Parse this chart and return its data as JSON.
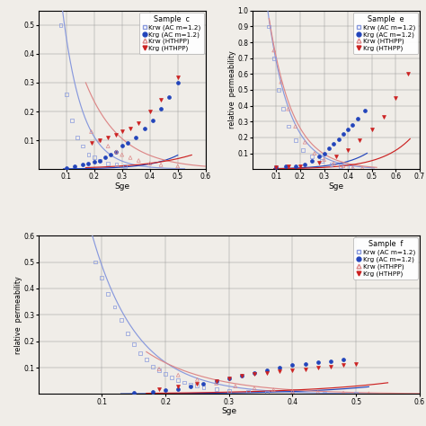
{
  "subplots": [
    {
      "label": "Sample  c",
      "xlim": [
        0.0,
        0.6
      ],
      "ylim": [
        0.0,
        0.55
      ],
      "yticks": [
        0.1,
        0.2,
        0.3,
        0.4,
        0.5
      ],
      "xticks": [
        0.1,
        0.2,
        0.3,
        0.4,
        0.5,
        0.6
      ],
      "xlabel": "Sge",
      "ylabel": "",
      "krw_ac_scatter": [
        [
          0.08,
          0.5
        ],
        [
          0.1,
          0.26
        ],
        [
          0.12,
          0.17
        ],
        [
          0.14,
          0.11
        ],
        [
          0.16,
          0.08
        ],
        [
          0.18,
          0.05
        ],
        [
          0.2,
          0.04
        ],
        [
          0.22,
          0.03
        ],
        [
          0.25,
          0.02
        ],
        [
          0.28,
          0.015
        ],
        [
          0.31,
          0.01
        ]
      ],
      "krg_ac_scatter": [
        [
          0.1,
          0.005
        ],
        [
          0.13,
          0.01
        ],
        [
          0.16,
          0.015
        ],
        [
          0.18,
          0.02
        ],
        [
          0.2,
          0.025
        ],
        [
          0.22,
          0.03
        ],
        [
          0.24,
          0.04
        ],
        [
          0.26,
          0.05
        ],
        [
          0.28,
          0.06
        ],
        [
          0.3,
          0.08
        ],
        [
          0.32,
          0.09
        ],
        [
          0.35,
          0.11
        ],
        [
          0.38,
          0.14
        ],
        [
          0.41,
          0.17
        ],
        [
          0.44,
          0.21
        ],
        [
          0.47,
          0.25
        ],
        [
          0.5,
          0.3
        ]
      ],
      "krw_ht_scatter": [
        [
          0.19,
          0.13
        ],
        [
          0.22,
          0.1
        ],
        [
          0.25,
          0.08
        ],
        [
          0.28,
          0.06
        ],
        [
          0.3,
          0.05
        ],
        [
          0.33,
          0.04
        ],
        [
          0.36,
          0.03
        ],
        [
          0.4,
          0.02
        ],
        [
          0.44,
          0.015
        ],
        [
          0.5,
          0.01
        ]
      ],
      "krg_ht_scatter": [
        [
          0.19,
          0.09
        ],
        [
          0.22,
          0.1
        ],
        [
          0.25,
          0.11
        ],
        [
          0.28,
          0.12
        ],
        [
          0.3,
          0.13
        ],
        [
          0.33,
          0.14
        ],
        [
          0.36,
          0.16
        ],
        [
          0.4,
          0.2
        ],
        [
          0.44,
          0.24
        ],
        [
          0.5,
          0.32
        ]
      ],
      "krw_ac_curve": [
        0.075,
        0.65,
        14.0
      ],
      "krg_ac_curve": [
        0.09,
        0.0008,
        10.0,
        0.5
      ],
      "krw_ht_curve": [
        0.17,
        0.3,
        8.0
      ],
      "krg_ht_curve": [
        0.17,
        0.005,
        6.0,
        0.55
      ]
    },
    {
      "label": "Sample  e",
      "xlim": [
        0.0,
        0.7
      ],
      "ylim": [
        0.0,
        1.0
      ],
      "yticks": [
        0.1,
        0.2,
        0.3,
        0.4,
        0.5,
        0.6,
        0.7,
        0.8,
        0.9,
        1.0
      ],
      "xticks": [
        0.1,
        0.2,
        0.3,
        0.4,
        0.5,
        0.6,
        0.7
      ],
      "xlabel": "Sge",
      "ylabel": "relative  permeability",
      "krw_ac_scatter": [
        [
          0.07,
          0.9
        ],
        [
          0.09,
          0.7
        ],
        [
          0.11,
          0.5
        ],
        [
          0.13,
          0.38
        ],
        [
          0.15,
          0.27
        ],
        [
          0.18,
          0.18
        ],
        [
          0.21,
          0.12
        ],
        [
          0.25,
          0.08
        ],
        [
          0.29,
          0.05
        ],
        [
          0.33,
          0.03
        ],
        [
          0.37,
          0.02
        ],
        [
          0.41,
          0.01
        ]
      ],
      "krg_ac_scatter": [
        [
          0.1,
          0.01
        ],
        [
          0.14,
          0.015
        ],
        [
          0.18,
          0.02
        ],
        [
          0.22,
          0.03
        ],
        [
          0.25,
          0.05
        ],
        [
          0.28,
          0.08
        ],
        [
          0.3,
          0.1
        ],
        [
          0.32,
          0.13
        ],
        [
          0.34,
          0.16
        ],
        [
          0.36,
          0.19
        ],
        [
          0.38,
          0.22
        ],
        [
          0.4,
          0.25
        ],
        [
          0.42,
          0.28
        ],
        [
          0.44,
          0.32
        ],
        [
          0.47,
          0.37
        ]
      ],
      "krw_ht_scatter": [
        [
          0.09,
          0.75
        ],
        [
          0.12,
          0.55
        ],
        [
          0.15,
          0.38
        ],
        [
          0.18,
          0.27
        ],
        [
          0.22,
          0.17
        ],
        [
          0.26,
          0.1
        ],
        [
          0.3,
          0.06
        ],
        [
          0.34,
          0.035
        ],
        [
          0.38,
          0.02
        ],
        [
          0.42,
          0.01
        ],
        [
          0.46,
          0.005
        ]
      ],
      "krg_ht_scatter": [
        [
          0.1,
          0.01
        ],
        [
          0.15,
          0.015
        ],
        [
          0.2,
          0.02
        ],
        [
          0.28,
          0.04
        ],
        [
          0.35,
          0.08
        ],
        [
          0.4,
          0.12
        ],
        [
          0.45,
          0.18
        ],
        [
          0.5,
          0.25
        ],
        [
          0.55,
          0.33
        ],
        [
          0.6,
          0.45
        ],
        [
          0.65,
          0.6
        ]
      ],
      "krw_ac_curve": [
        0.06,
        1.05,
        11.0
      ],
      "krg_ac_curve": [
        0.09,
        0.003,
        9.0,
        0.48
      ],
      "krw_ht_curve": [
        0.07,
        0.95,
        10.0
      ],
      "krg_ht_curve": [
        0.09,
        0.002,
        8.0,
        0.66
      ]
    },
    {
      "label": "Sample  f",
      "xlim": [
        0.0,
        0.6
      ],
      "ylim": [
        0.0,
        0.6
      ],
      "yticks": [
        0.1,
        0.2,
        0.3,
        0.4,
        0.5,
        0.6
      ],
      "xticks": [
        0.1,
        0.2,
        0.3,
        0.4,
        0.5,
        0.6
      ],
      "xlabel": "Sge",
      "ylabel": "relative  permeability",
      "krw_ac_scatter": [
        [
          0.09,
          0.5
        ],
        [
          0.1,
          0.44
        ],
        [
          0.11,
          0.38
        ],
        [
          0.12,
          0.33
        ],
        [
          0.13,
          0.28
        ],
        [
          0.14,
          0.23
        ],
        [
          0.15,
          0.19
        ],
        [
          0.16,
          0.155
        ],
        [
          0.17,
          0.13
        ],
        [
          0.18,
          0.105
        ],
        [
          0.19,
          0.09
        ],
        [
          0.2,
          0.075
        ],
        [
          0.21,
          0.063
        ],
        [
          0.22,
          0.053
        ],
        [
          0.23,
          0.044
        ],
        [
          0.24,
          0.037
        ],
        [
          0.25,
          0.031
        ],
        [
          0.26,
          0.026
        ],
        [
          0.28,
          0.018
        ],
        [
          0.3,
          0.013
        ],
        [
          0.33,
          0.008
        ],
        [
          0.36,
          0.005
        ],
        [
          0.4,
          0.003
        ],
        [
          0.45,
          0.002
        ],
        [
          0.5,
          0.001
        ]
      ],
      "krg_ac_scatter": [
        [
          0.15,
          0.005
        ],
        [
          0.18,
          0.01
        ],
        [
          0.2,
          0.015
        ],
        [
          0.22,
          0.02
        ],
        [
          0.24,
          0.03
        ],
        [
          0.26,
          0.04
        ],
        [
          0.28,
          0.05
        ],
        [
          0.3,
          0.06
        ],
        [
          0.32,
          0.07
        ],
        [
          0.34,
          0.08
        ],
        [
          0.36,
          0.09
        ],
        [
          0.38,
          0.1
        ],
        [
          0.4,
          0.11
        ],
        [
          0.42,
          0.115
        ],
        [
          0.44,
          0.12
        ],
        [
          0.46,
          0.125
        ],
        [
          0.48,
          0.13
        ]
      ],
      "krw_ht_scatter": [
        [
          0.19,
          0.095
        ],
        [
          0.22,
          0.072
        ],
        [
          0.25,
          0.055
        ],
        [
          0.28,
          0.041
        ],
        [
          0.31,
          0.03
        ],
        [
          0.34,
          0.022
        ],
        [
          0.37,
          0.016
        ],
        [
          0.4,
          0.011
        ],
        [
          0.44,
          0.007
        ],
        [
          0.48,
          0.004
        ],
        [
          0.52,
          0.002
        ]
      ],
      "krg_ht_scatter": [
        [
          0.19,
          0.02
        ],
        [
          0.22,
          0.03
        ],
        [
          0.25,
          0.04
        ],
        [
          0.28,
          0.05
        ],
        [
          0.3,
          0.06
        ],
        [
          0.32,
          0.07
        ],
        [
          0.34,
          0.075
        ],
        [
          0.36,
          0.08
        ],
        [
          0.38,
          0.085
        ],
        [
          0.4,
          0.09
        ],
        [
          0.42,
          0.095
        ],
        [
          0.44,
          0.1
        ],
        [
          0.46,
          0.105
        ],
        [
          0.48,
          0.11
        ],
        [
          0.5,
          0.115
        ]
      ],
      "krw_ac_curve": [
        0.085,
        0.6,
        14.0
      ],
      "krg_ac_curve": [
        0.13,
        0.001,
        8.5,
        0.52
      ],
      "krw_ht_curve": [
        0.17,
        0.16,
        10.0
      ],
      "krg_ht_curve": [
        0.17,
        0.003,
        7.0,
        0.55
      ]
    }
  ],
  "blue_dark": "#2244bb",
  "blue_light": "#8899dd",
  "red_dark": "#cc2222",
  "red_light": "#dd8888",
  "bg_color": "#f0ede8"
}
